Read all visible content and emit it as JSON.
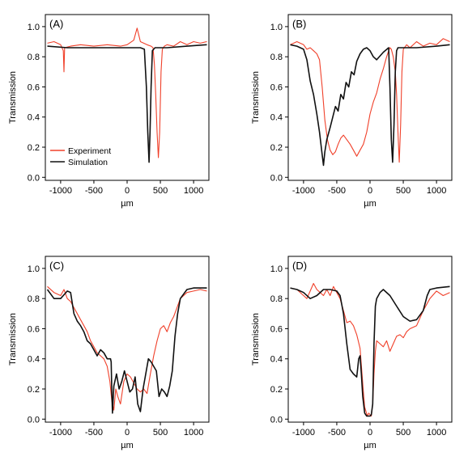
{
  "figure": {
    "colors": {
      "experiment": "#f0402a",
      "simulation": "#111111",
      "axis": "#000000"
    }
  },
  "chart_data": [
    {
      "type": "line",
      "panel_label": "(A)",
      "xlabel": "µm",
      "ylabel": "Transmission",
      "xlim": [
        -1230,
        1230
      ],
      "ylim": [
        -0.02,
        1.08
      ],
      "x_ticks": [
        -1000,
        -500,
        0,
        500,
        1000
      ],
      "x_tick_labels": [
        "-1000",
        "-500",
        "0",
        "500",
        "1000"
      ],
      "y_ticks": [
        0.0,
        0.2,
        0.4,
        0.6,
        0.8,
        1.0
      ],
      "y_tick_labels": [
        "0.0",
        "0.2",
        "0.4",
        "0.6",
        "0.8",
        "1.0"
      ],
      "legend": {
        "placement": "bottom-left",
        "entries": [
          "Experiment",
          "Simulation"
        ]
      },
      "series": [
        {
          "name": "Experiment",
          "color": "#f0402a",
          "x": [
            -1200,
            -1100,
            -1000,
            -960,
            -950,
            -940,
            -850,
            -700,
            -500,
            -300,
            -100,
            0,
            100,
            150,
            200,
            300,
            360,
            390,
            410,
            430,
            450,
            470,
            490,
            510,
            530,
            560,
            600,
            700,
            800,
            900,
            1000,
            1100,
            1200
          ],
          "y": [
            0.89,
            0.9,
            0.88,
            0.84,
            0.7,
            0.86,
            0.87,
            0.88,
            0.87,
            0.88,
            0.87,
            0.88,
            0.91,
            0.99,
            0.9,
            0.88,
            0.87,
            0.86,
            0.75,
            0.55,
            0.3,
            0.13,
            0.3,
            0.7,
            0.85,
            0.87,
            0.88,
            0.87,
            0.9,
            0.88,
            0.9,
            0.89,
            0.9
          ]
        },
        {
          "name": "Simulation",
          "color": "#111111",
          "x": [
            -1200,
            -900,
            -600,
            -300,
            0,
            200,
            260,
            290,
            310,
            330,
            345,
            360,
            380,
            400,
            420,
            450,
            600,
            900,
            1200
          ],
          "y": [
            0.87,
            0.86,
            0.86,
            0.86,
            0.86,
            0.86,
            0.85,
            0.6,
            0.3,
            0.1,
            0.3,
            0.6,
            0.84,
            0.85,
            0.86,
            0.86,
            0.86,
            0.87,
            0.88
          ]
        }
      ]
    },
    {
      "type": "line",
      "panel_label": "(B)",
      "xlabel": "µm",
      "ylabel": "Transmission",
      "xlim": [
        -1230,
        1230
      ],
      "ylim": [
        -0.02,
        1.08
      ],
      "x_ticks": [
        -1000,
        -500,
        0,
        500,
        1000
      ],
      "x_tick_labels": [
        "-1000",
        "-500",
        "0",
        "500",
        "1000"
      ],
      "y_ticks": [
        0.0,
        0.2,
        0.4,
        0.6,
        0.8,
        1.0
      ],
      "y_tick_labels": [
        "0.0",
        "0.2",
        "0.4",
        "0.6",
        "0.8",
        "1.0"
      ],
      "series": [
        {
          "name": "Experiment",
          "color": "#f0402a",
          "x": [
            -1200,
            -1100,
            -1000,
            -950,
            -900,
            -850,
            -800,
            -760,
            -720,
            -680,
            -640,
            -600,
            -560,
            -520,
            -480,
            -440,
            -400,
            -350,
            -300,
            -250,
            -200,
            -150,
            -100,
            -50,
            0,
            50,
            100,
            150,
            200,
            250,
            280,
            300,
            320,
            350,
            380,
            400,
            420,
            440,
            460,
            480,
            500,
            550,
            600,
            700,
            800,
            900,
            1000,
            1100,
            1200
          ],
          "y": [
            0.88,
            0.9,
            0.88,
            0.85,
            0.86,
            0.84,
            0.82,
            0.78,
            0.6,
            0.38,
            0.25,
            0.18,
            0.15,
            0.17,
            0.22,
            0.26,
            0.28,
            0.25,
            0.22,
            0.18,
            0.14,
            0.18,
            0.22,
            0.3,
            0.42,
            0.5,
            0.56,
            0.65,
            0.72,
            0.8,
            0.84,
            0.86,
            0.85,
            0.8,
            0.7,
            0.55,
            0.3,
            0.1,
            0.35,
            0.7,
            0.85,
            0.88,
            0.86,
            0.9,
            0.87,
            0.89,
            0.88,
            0.92,
            0.9
          ]
        },
        {
          "name": "Simulation",
          "color": "#111111",
          "x": [
            -1200,
            -1100,
            -1000,
            -950,
            -900,
            -850,
            -800,
            -760,
            -720,
            -700,
            -680,
            -650,
            -600,
            -560,
            -520,
            -480,
            -440,
            -400,
            -360,
            -320,
            -280,
            -240,
            -200,
            -150,
            -100,
            -50,
            0,
            50,
            100,
            200,
            280,
            300,
            320,
            340,
            360,
            380,
            400,
            420,
            500,
            700,
            1000,
            1200
          ],
          "y": [
            0.88,
            0.87,
            0.85,
            0.78,
            0.64,
            0.55,
            0.42,
            0.3,
            0.15,
            0.08,
            0.17,
            0.25,
            0.33,
            0.4,
            0.47,
            0.44,
            0.55,
            0.52,
            0.63,
            0.6,
            0.7,
            0.68,
            0.77,
            0.82,
            0.85,
            0.86,
            0.84,
            0.8,
            0.78,
            0.83,
            0.86,
            0.6,
            0.25,
            0.1,
            0.35,
            0.7,
            0.84,
            0.86,
            0.86,
            0.86,
            0.87,
            0.88
          ]
        }
      ]
    },
    {
      "type": "line",
      "panel_label": "(C)",
      "xlabel": "µm",
      "ylabel": "Transmission",
      "xlim": [
        -1230,
        1230
      ],
      "ylim": [
        -0.02,
        1.08
      ],
      "x_ticks": [
        -1000,
        -500,
        0,
        500,
        1000
      ],
      "x_tick_labels": [
        "-1000",
        "-500",
        "0",
        "500",
        "1000"
      ],
      "y_ticks": [
        0.0,
        0.2,
        0.4,
        0.6,
        0.8,
        1.0
      ],
      "y_tick_labels": [
        "0.0",
        "0.2",
        "0.4",
        "0.6",
        "0.8",
        "1.0"
      ],
      "series": [
        {
          "name": "Experiment",
          "color": "#f0402a",
          "x": [
            -1200,
            -1100,
            -1000,
            -950,
            -900,
            -850,
            -800,
            -750,
            -700,
            -650,
            -600,
            -550,
            -500,
            -450,
            -400,
            -350,
            -300,
            -260,
            -230,
            -200,
            -170,
            -140,
            -100,
            -50,
            0,
            50,
            100,
            150,
            200,
            250,
            300,
            350,
            400,
            450,
            500,
            550,
            600,
            650,
            700,
            750,
            800,
            900,
            1000,
            1100,
            1200
          ],
          "y": [
            0.88,
            0.84,
            0.82,
            0.86,
            0.8,
            0.78,
            0.74,
            0.7,
            0.66,
            0.62,
            0.58,
            0.52,
            0.48,
            0.44,
            0.42,
            0.4,
            0.35,
            0.25,
            0.12,
            0.06,
            0.2,
            0.15,
            0.1,
            0.25,
            0.3,
            0.28,
            0.24,
            0.2,
            0.18,
            0.2,
            0.17,
            0.3,
            0.42,
            0.52,
            0.6,
            0.62,
            0.58,
            0.64,
            0.68,
            0.74,
            0.8,
            0.84,
            0.85,
            0.86,
            0.85
          ]
        },
        {
          "name": "Simulation",
          "color": "#111111",
          "x": [
            -1200,
            -1100,
            -1000,
            -900,
            -850,
            -800,
            -750,
            -700,
            -650,
            -600,
            -550,
            -500,
            -450,
            -400,
            -350,
            -300,
            -250,
            -240,
            -230,
            -220,
            -200,
            -160,
            -120,
            -80,
            -40,
            0,
            40,
            80,
            120,
            160,
            200,
            240,
            280,
            320,
            360,
            400,
            440,
            480,
            520,
            560,
            600,
            640,
            680,
            720,
            760,
            800,
            900,
            1000,
            1100,
            1200
          ],
          "y": [
            0.86,
            0.8,
            0.8,
            0.85,
            0.84,
            0.7,
            0.65,
            0.62,
            0.58,
            0.52,
            0.5,
            0.46,
            0.42,
            0.46,
            0.44,
            0.4,
            0.4,
            0.38,
            0.18,
            0.04,
            0.22,
            0.3,
            0.2,
            0.25,
            0.32,
            0.25,
            0.18,
            0.2,
            0.28,
            0.1,
            0.05,
            0.2,
            0.3,
            0.4,
            0.38,
            0.35,
            0.32,
            0.15,
            0.2,
            0.18,
            0.15,
            0.22,
            0.32,
            0.55,
            0.7,
            0.8,
            0.86,
            0.87,
            0.87,
            0.87
          ]
        }
      ]
    },
    {
      "type": "line",
      "panel_label": "(D)",
      "xlabel": "µm",
      "ylabel": "Transmission",
      "xlim": [
        -1230,
        1230
      ],
      "ylim": [
        -0.02,
        1.08
      ],
      "x_ticks": [
        -1000,
        -500,
        0,
        500,
        1000
      ],
      "x_tick_labels": [
        "-1000",
        "-500",
        "0",
        "500",
        "1000"
      ],
      "y_ticks": [
        0.0,
        0.2,
        0.4,
        0.6,
        0.8,
        1.0
      ],
      "y_tick_labels": [
        "0.0",
        "0.2",
        "0.4",
        "0.6",
        "0.8",
        "1.0"
      ],
      "series": [
        {
          "name": "Experiment",
          "color": "#f0402a",
          "x": [
            -1200,
            -1100,
            -1000,
            -950,
            -900,
            -850,
            -800,
            -750,
            -700,
            -650,
            -600,
            -550,
            -500,
            -450,
            -400,
            -350,
            -300,
            -250,
            -200,
            -150,
            -120,
            -100,
            -80,
            -60,
            -40,
            -20,
            0,
            20,
            40,
            60,
            80,
            100,
            150,
            200,
            250,
            300,
            350,
            400,
            450,
            500,
            550,
            600,
            700,
            800,
            900,
            1000,
            1100,
            1200
          ],
          "y": [
            0.87,
            0.86,
            0.82,
            0.8,
            0.85,
            0.9,
            0.86,
            0.84,
            0.82,
            0.86,
            0.82,
            0.88,
            0.84,
            0.8,
            0.72,
            0.64,
            0.65,
            0.62,
            0.56,
            0.47,
            0.3,
            0.18,
            0.08,
            0.05,
            0.02,
            0.04,
            0.03,
            0.02,
            0.1,
            0.3,
            0.45,
            0.52,
            0.5,
            0.48,
            0.52,
            0.45,
            0.5,
            0.55,
            0.56,
            0.54,
            0.58,
            0.6,
            0.62,
            0.72,
            0.8,
            0.85,
            0.82,
            0.84
          ]
        },
        {
          "name": "Simulation",
          "color": "#111111",
          "x": [
            -1200,
            -1100,
            -1000,
            -900,
            -800,
            -700,
            -600,
            -500,
            -450,
            -400,
            -350,
            -300,
            -250,
            -200,
            -170,
            -150,
            -130,
            -110,
            -80,
            -50,
            -20,
            0,
            20,
            40,
            60,
            80,
            100,
            150,
            200,
            300,
            400,
            500,
            600,
            700,
            800,
            860,
            900,
            1000,
            1200
          ],
          "y": [
            0.87,
            0.86,
            0.84,
            0.8,
            0.82,
            0.86,
            0.86,
            0.85,
            0.82,
            0.7,
            0.5,
            0.33,
            0.3,
            0.28,
            0.4,
            0.42,
            0.3,
            0.15,
            0.04,
            0.02,
            0.02,
            0.02,
            0.03,
            0.1,
            0.5,
            0.75,
            0.8,
            0.84,
            0.86,
            0.82,
            0.75,
            0.68,
            0.65,
            0.66,
            0.72,
            0.82,
            0.86,
            0.87,
            0.88
          ]
        }
      ]
    }
  ]
}
